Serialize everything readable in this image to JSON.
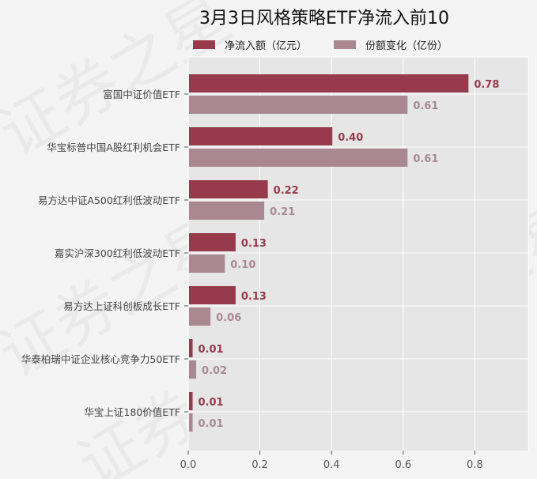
{
  "chart_data": {
    "type": "bar",
    "orientation": "horizontal",
    "title": "3月3日风格策略ETF净流入前10",
    "categories": [
      "富国中证价值ETF",
      "华宝标普中国A股红利机会ETF",
      "易方达中证A500红利低波动ETF",
      "嘉实沪深300红利低波动ETF",
      "易方达上证科创板成长ETF",
      "华泰柏瑞中证企业核心竞争力50ETF",
      "华宝上证180价值ETF"
    ],
    "series": [
      {
        "name": "净流入额（亿元）",
        "color": "#963a4c",
        "values": [
          0.78,
          0.4,
          0.22,
          0.13,
          0.13,
          0.01,
          0.01
        ]
      },
      {
        "name": "份额变化（亿份）",
        "color": "#a98892",
        "values": [
          0.61,
          0.61,
          0.21,
          0.1,
          0.06,
          0.02,
          0.01
        ]
      }
    ],
    "xlim": [
      0,
      0.95
    ],
    "xticks": [
      "0.0",
      "0.2",
      "0.4",
      "0.6",
      "0.8"
    ],
    "grid": true,
    "legend_position": "top"
  },
  "watermark": "证券之星"
}
